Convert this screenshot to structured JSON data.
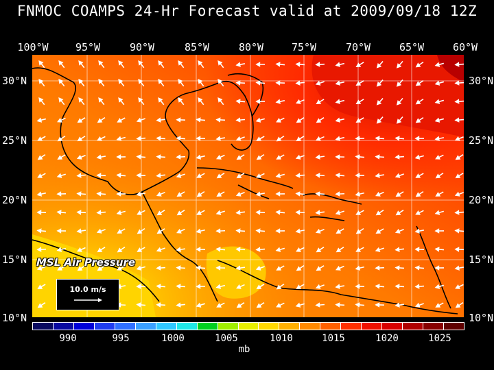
{
  "title": "FNMOC COAMPS 24-Hr Forecast valid at 2009/09/18 12Z",
  "lon_labels": [
    "100°W",
    "95°W",
    "90°W",
    "85°W",
    "80°W",
    "75°W",
    "70°W",
    "65°W",
    "60°W"
  ],
  "lat_labels": [
    "30°N",
    "25°N",
    "20°N",
    "15°N",
    "10°N"
  ],
  "field_label": "MSL Air Pressure",
  "wind_reference": {
    "label": "10.0 m/s"
  },
  "colorbar": {
    "ticks": [
      "990",
      "995",
      "1000",
      "1005",
      "1010",
      "1015",
      "1020",
      "1025"
    ],
    "unit": "mb",
    "colors": [
      "#0a0a60",
      "#0a0aa0",
      "#0000d8",
      "#1f3cf0",
      "#3070ff",
      "#3aa0ff",
      "#30c8ff",
      "#20e8e8",
      "#00d020",
      "#a0f000",
      "#e8f000",
      "#ffd800",
      "#ffb000",
      "#ff8a00",
      "#ff6000",
      "#ff3000",
      "#f01000",
      "#d80000",
      "#b00000",
      "#880000",
      "#600000"
    ]
  },
  "colors": {
    "sea_low": "#ffd000",
    "sea_mid": "#ff9a00",
    "sea_high": "#ff3a00",
    "max": "#b80000"
  }
}
